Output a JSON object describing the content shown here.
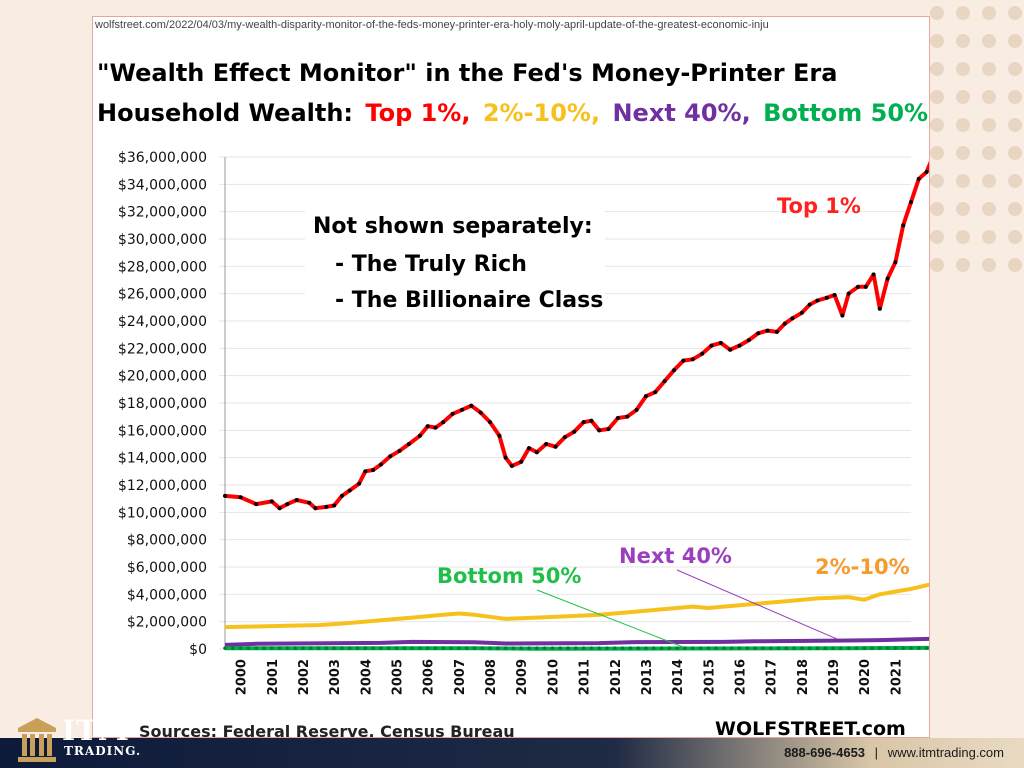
{
  "source_url": "wolfstreet.com/2022/04/03/my-wealth-disparity-monitor-of-the-feds-money-printer-era-holy-moly-april-update-of-the-greatest-economic-inju",
  "title_line1": "\"Wealth Effect Monitor\"  in the Fed's Money-Printer Era",
  "title_line2": {
    "prefix": "Household  Wealth:",
    "top1": "Top 1%,",
    "p2_10": "2%-10%,",
    "next40": "Next 40%,",
    "bottom50": "Bottom 50%"
  },
  "colors": {
    "top1": "#ff0000",
    "p2_10": "#f7c11d",
    "next40": "#7030a0",
    "bottom50": "#00b050",
    "annot_next40": "#9b3fbf",
    "annot_2_10": "#f59b2c"
  },
  "annotation_box": {
    "line1": "Not shown separately:",
    "line2": "- The Truly Rich",
    "line3": "- The Billionaire Class"
  },
  "sources": "Sources: Federal Reserve, Census Bureau",
  "brand": "WOLFSTREET.com",
  "footer": {
    "phone": "888-696-4653",
    "separator": "|",
    "website": "www.itmtrading.com",
    "logo_text": "ITM",
    "logo_sub": "TRADING."
  },
  "chart_data": {
    "type": "line",
    "ylim": [
      0,
      36000000
    ],
    "y_ticks": [
      "$0",
      "$2,000,000",
      "$4,000,000",
      "$6,000,000",
      "$8,000,000",
      "$10,000,000",
      "$12,000,000",
      "$14,000,000",
      "$16,000,000",
      "$18,000,000",
      "$20,000,000",
      "$22,000,000",
      "$24,000,000",
      "$26,000,000",
      "$28,000,000",
      "$30,000,000",
      "$32,000,000",
      "$34,000,000",
      "$36,000,000"
    ],
    "x_ticks": [
      "2000",
      "2001",
      "2002",
      "2003",
      "2004",
      "2005",
      "2006",
      "2007",
      "2008",
      "2009",
      "2010",
      "2011",
      "2012",
      "2013",
      "2014",
      "2015",
      "2016",
      "2017",
      "2018",
      "2019",
      "2020",
      "2021"
    ],
    "xlim": [
      2000,
      2022
    ],
    "series": [
      {
        "name": "Top 1%",
        "key": "top1",
        "labels_on_chart": "Top 1%",
        "points": [
          [
            2000.0,
            11200000
          ],
          [
            2000.5,
            11100000
          ],
          [
            2001.0,
            10600000
          ],
          [
            2001.5,
            10800000
          ],
          [
            2001.75,
            10300000
          ],
          [
            2002.0,
            10600000
          ],
          [
            2002.3,
            10900000
          ],
          [
            2002.7,
            10700000
          ],
          [
            2002.9,
            10300000
          ],
          [
            2003.25,
            10400000
          ],
          [
            2003.5,
            10500000
          ],
          [
            2003.75,
            11200000
          ],
          [
            2004.0,
            11600000
          ],
          [
            2004.3,
            12100000
          ],
          [
            2004.5,
            13000000
          ],
          [
            2004.75,
            13100000
          ],
          [
            2005.0,
            13500000
          ],
          [
            2005.3,
            14100000
          ],
          [
            2005.6,
            14500000
          ],
          [
            2005.9,
            15000000
          ],
          [
            2006.25,
            15600000
          ],
          [
            2006.5,
            16300000
          ],
          [
            2006.75,
            16200000
          ],
          [
            2007.0,
            16600000
          ],
          [
            2007.3,
            17200000
          ],
          [
            2007.6,
            17500000
          ],
          [
            2007.9,
            17800000
          ],
          [
            2008.2,
            17300000
          ],
          [
            2008.5,
            16600000
          ],
          [
            2008.8,
            15600000
          ],
          [
            2009.0,
            14000000
          ],
          [
            2009.2,
            13400000
          ],
          [
            2009.5,
            13700000
          ],
          [
            2009.75,
            14700000
          ],
          [
            2010.0,
            14400000
          ],
          [
            2010.3,
            15000000
          ],
          [
            2010.6,
            14800000
          ],
          [
            2010.9,
            15500000
          ],
          [
            2011.2,
            15900000
          ],
          [
            2011.5,
            16600000
          ],
          [
            2011.75,
            16700000
          ],
          [
            2012.0,
            16000000
          ],
          [
            2012.3,
            16100000
          ],
          [
            2012.6,
            16900000
          ],
          [
            2012.9,
            17000000
          ],
          [
            2013.2,
            17500000
          ],
          [
            2013.5,
            18500000
          ],
          [
            2013.8,
            18800000
          ],
          [
            2014.1,
            19600000
          ],
          [
            2014.4,
            20400000
          ],
          [
            2014.7,
            21100000
          ],
          [
            2015.0,
            21200000
          ],
          [
            2015.3,
            21600000
          ],
          [
            2015.6,
            22200000
          ],
          [
            2015.9,
            22400000
          ],
          [
            2016.2,
            21900000
          ],
          [
            2016.5,
            22200000
          ],
          [
            2016.8,
            22600000
          ],
          [
            2017.1,
            23100000
          ],
          [
            2017.4,
            23300000
          ],
          [
            2017.7,
            23200000
          ],
          [
            2017.95,
            23800000
          ],
          [
            2018.2,
            24200000
          ],
          [
            2018.5,
            24600000
          ],
          [
            2018.75,
            25200000
          ],
          [
            2019.0,
            25500000
          ],
          [
            2019.3,
            25700000
          ],
          [
            2019.55,
            25900000
          ],
          [
            2019.8,
            24400000
          ],
          [
            2020.0,
            26000000
          ],
          [
            2020.3,
            26500000
          ],
          [
            2020.55,
            26500000
          ],
          [
            2020.8,
            27400000
          ],
          [
            2021.0,
            24900000
          ],
          [
            2021.25,
            27100000
          ],
          [
            2021.5,
            28300000
          ],
          [
            2021.75,
            31000000
          ],
          [
            2022.0,
            32700000
          ],
          [
            2022.25,
            34400000
          ],
          [
            2022.5,
            34900000
          ],
          [
            2022.75,
            36300000
          ]
        ]
      },
      {
        "name": "2%-10%",
        "key": "p2_10",
        "labels_on_chart": "2%-10%",
        "points": [
          [
            2000.0,
            1600000
          ],
          [
            2001.0,
            1650000
          ],
          [
            2002.0,
            1700000
          ],
          [
            2003.0,
            1750000
          ],
          [
            2004.0,
            1900000
          ],
          [
            2005.0,
            2100000
          ],
          [
            2006.0,
            2300000
          ],
          [
            2007.0,
            2500000
          ],
          [
            2007.5,
            2600000
          ],
          [
            2008.0,
            2500000
          ],
          [
            2009.0,
            2200000
          ],
          [
            2010.0,
            2300000
          ],
          [
            2011.0,
            2400000
          ],
          [
            2012.0,
            2500000
          ],
          [
            2013.0,
            2700000
          ],
          [
            2014.0,
            2900000
          ],
          [
            2015.0,
            3100000
          ],
          [
            2015.5,
            3000000
          ],
          [
            2016.0,
            3100000
          ],
          [
            2017.0,
            3300000
          ],
          [
            2018.0,
            3500000
          ],
          [
            2019.0,
            3700000
          ],
          [
            2020.0,
            3800000
          ],
          [
            2020.5,
            3600000
          ],
          [
            2021.0,
            4000000
          ],
          [
            2022.0,
            4400000
          ],
          [
            2022.75,
            4800000
          ]
        ]
      },
      {
        "name": "Next 40%",
        "key": "next40",
        "labels_on_chart": "Next 40%",
        "points": [
          [
            2000.0,
            300000
          ],
          [
            2001.0,
            380000
          ],
          [
            2005.0,
            450000
          ],
          [
            2006.0,
            520000
          ],
          [
            2008.0,
            500000
          ],
          [
            2009.0,
            400000
          ],
          [
            2012.0,
            430000
          ],
          [
            2013.0,
            500000
          ],
          [
            2016.0,
            520000
          ],
          [
            2017.0,
            560000
          ],
          [
            2020.0,
            620000
          ],
          [
            2021.0,
            650000
          ],
          [
            2022.75,
            750000
          ]
        ]
      },
      {
        "name": "Bottom 50%",
        "key": "bottom50",
        "labels_on_chart": "Bottom 50%",
        "points": [
          [
            2000.0,
            50000
          ],
          [
            2005.0,
            60000
          ],
          [
            2008.0,
            50000
          ],
          [
            2010.0,
            20000
          ],
          [
            2015.0,
            40000
          ],
          [
            2020.0,
            60000
          ],
          [
            2022.75,
            90000
          ]
        ]
      }
    ],
    "on_chart_labels": [
      {
        "text": "Top 1%",
        "key": "top1"
      },
      {
        "text": "Next 40%",
        "key": "annot_next40"
      },
      {
        "text": "2%-10%",
        "key": "annot_2_10"
      },
      {
        "text": "Bottom 50%",
        "key": "bottom50"
      }
    ]
  }
}
